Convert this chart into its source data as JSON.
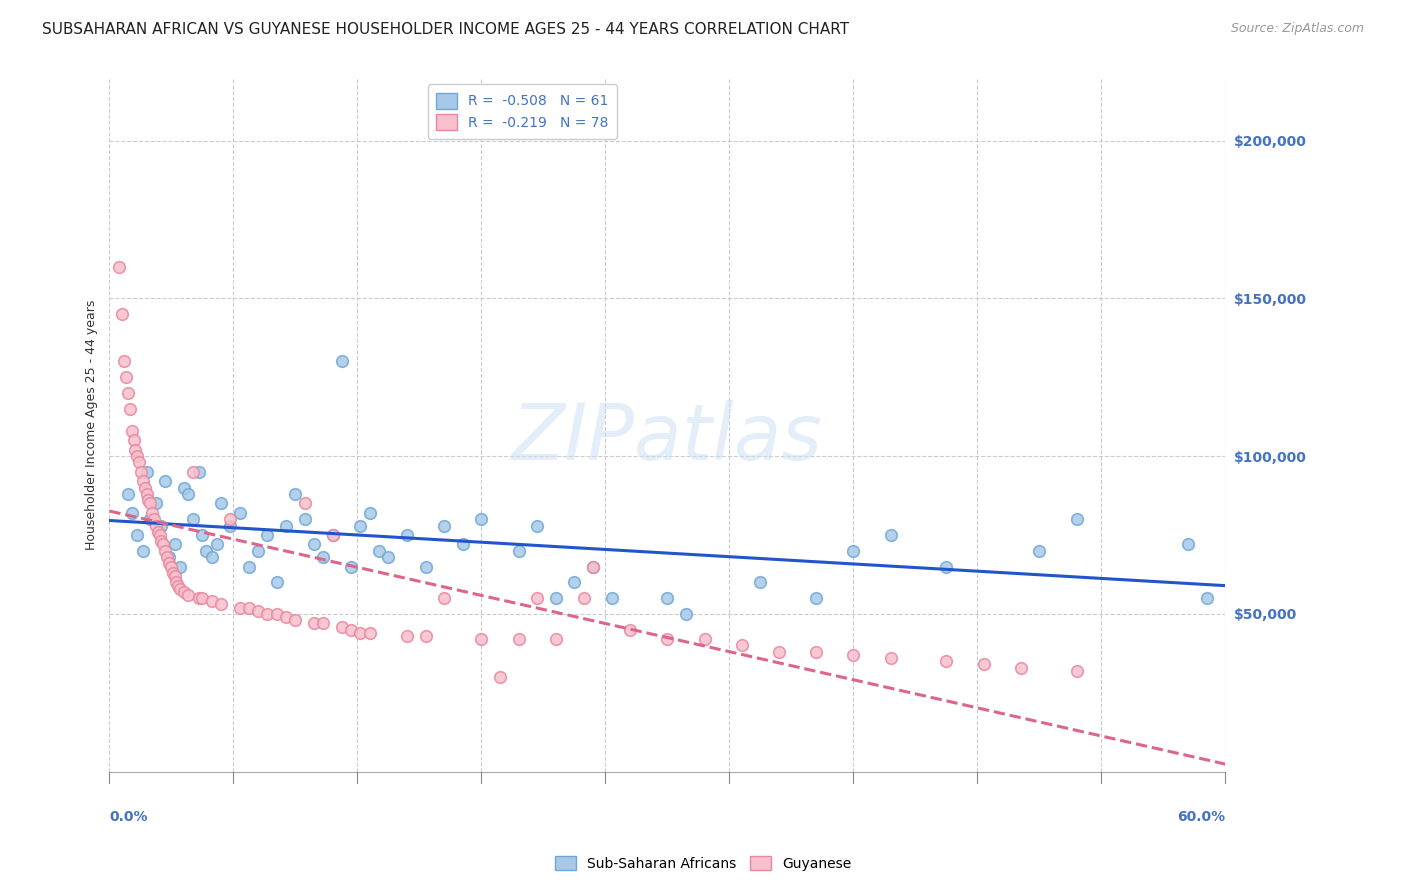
{
  "title": "SUBSAHARAN AFRICAN VS GUYANESE HOUSEHOLDER INCOME AGES 25 - 44 YEARS CORRELATION CHART",
  "source": "Source: ZipAtlas.com",
  "ylabel": "Householder Income Ages 25 - 44 years",
  "xmin": 0.0,
  "xmax": 0.6,
  "ymin": 0,
  "ymax": 220000,
  "right_yticks": [
    50000,
    100000,
    150000,
    200000
  ],
  "right_ytick_labels": [
    "$50,000",
    "$100,000",
    "$150,000",
    "$200,000"
  ],
  "blue_R": -0.508,
  "blue_N": 61,
  "pink_R": -0.219,
  "pink_N": 78,
  "blue_face": "#a8c8e8",
  "blue_edge": "#6fa8d8",
  "pink_face": "#f8c0cc",
  "pink_edge": "#e888a0",
  "trend_blue": "#2255cc",
  "trend_pink": "#dd6688",
  "blue_scatter": [
    [
      0.01,
      88000
    ],
    [
      0.012,
      82000
    ],
    [
      0.015,
      75000
    ],
    [
      0.018,
      70000
    ],
    [
      0.02,
      95000
    ],
    [
      0.022,
      80000
    ],
    [
      0.025,
      85000
    ],
    [
      0.028,
      78000
    ],
    [
      0.03,
      92000
    ],
    [
      0.032,
      68000
    ],
    [
      0.035,
      72000
    ],
    [
      0.038,
      65000
    ],
    [
      0.04,
      90000
    ],
    [
      0.042,
      88000
    ],
    [
      0.045,
      80000
    ],
    [
      0.048,
      95000
    ],
    [
      0.05,
      75000
    ],
    [
      0.052,
      70000
    ],
    [
      0.055,
      68000
    ],
    [
      0.058,
      72000
    ],
    [
      0.06,
      85000
    ],
    [
      0.065,
      78000
    ],
    [
      0.07,
      82000
    ],
    [
      0.075,
      65000
    ],
    [
      0.08,
      70000
    ],
    [
      0.085,
      75000
    ],
    [
      0.09,
      60000
    ],
    [
      0.095,
      78000
    ],
    [
      0.1,
      88000
    ],
    [
      0.105,
      80000
    ],
    [
      0.11,
      72000
    ],
    [
      0.115,
      68000
    ],
    [
      0.12,
      75000
    ],
    [
      0.125,
      130000
    ],
    [
      0.13,
      65000
    ],
    [
      0.135,
      78000
    ],
    [
      0.14,
      82000
    ],
    [
      0.145,
      70000
    ],
    [
      0.15,
      68000
    ],
    [
      0.16,
      75000
    ],
    [
      0.17,
      65000
    ],
    [
      0.18,
      78000
    ],
    [
      0.19,
      72000
    ],
    [
      0.2,
      80000
    ],
    [
      0.22,
      70000
    ],
    [
      0.23,
      78000
    ],
    [
      0.24,
      55000
    ],
    [
      0.25,
      60000
    ],
    [
      0.26,
      65000
    ],
    [
      0.27,
      55000
    ],
    [
      0.3,
      55000
    ],
    [
      0.31,
      50000
    ],
    [
      0.35,
      60000
    ],
    [
      0.38,
      55000
    ],
    [
      0.4,
      70000
    ],
    [
      0.42,
      75000
    ],
    [
      0.45,
      65000
    ],
    [
      0.5,
      70000
    ],
    [
      0.52,
      80000
    ],
    [
      0.58,
      72000
    ],
    [
      0.59,
      55000
    ]
  ],
  "pink_scatter": [
    [
      0.005,
      160000
    ],
    [
      0.007,
      145000
    ],
    [
      0.008,
      130000
    ],
    [
      0.009,
      125000
    ],
    [
      0.01,
      120000
    ],
    [
      0.011,
      115000
    ],
    [
      0.012,
      108000
    ],
    [
      0.013,
      105000
    ],
    [
      0.014,
      102000
    ],
    [
      0.015,
      100000
    ],
    [
      0.016,
      98000
    ],
    [
      0.017,
      95000
    ],
    [
      0.018,
      92000
    ],
    [
      0.019,
      90000
    ],
    [
      0.02,
      88000
    ],
    [
      0.021,
      86000
    ],
    [
      0.022,
      85000
    ],
    [
      0.023,
      82000
    ],
    [
      0.024,
      80000
    ],
    [
      0.025,
      78000
    ],
    [
      0.026,
      76000
    ],
    [
      0.027,
      75000
    ],
    [
      0.028,
      73000
    ],
    [
      0.029,
      72000
    ],
    [
      0.03,
      70000
    ],
    [
      0.031,
      68000
    ],
    [
      0.032,
      66000
    ],
    [
      0.033,
      65000
    ],
    [
      0.034,
      63000
    ],
    [
      0.035,
      62000
    ],
    [
      0.036,
      60000
    ],
    [
      0.037,
      59000
    ],
    [
      0.038,
      58000
    ],
    [
      0.04,
      57000
    ],
    [
      0.042,
      56000
    ],
    [
      0.045,
      95000
    ],
    [
      0.048,
      55000
    ],
    [
      0.05,
      55000
    ],
    [
      0.055,
      54000
    ],
    [
      0.06,
      53000
    ],
    [
      0.065,
      80000
    ],
    [
      0.07,
      52000
    ],
    [
      0.075,
      52000
    ],
    [
      0.08,
      51000
    ],
    [
      0.085,
      50000
    ],
    [
      0.09,
      50000
    ],
    [
      0.095,
      49000
    ],
    [
      0.1,
      48000
    ],
    [
      0.105,
      85000
    ],
    [
      0.11,
      47000
    ],
    [
      0.115,
      47000
    ],
    [
      0.12,
      75000
    ],
    [
      0.125,
      46000
    ],
    [
      0.13,
      45000
    ],
    [
      0.135,
      44000
    ],
    [
      0.14,
      44000
    ],
    [
      0.16,
      43000
    ],
    [
      0.17,
      43000
    ],
    [
      0.18,
      55000
    ],
    [
      0.2,
      42000
    ],
    [
      0.21,
      30000
    ],
    [
      0.22,
      42000
    ],
    [
      0.23,
      55000
    ],
    [
      0.24,
      42000
    ],
    [
      0.255,
      55000
    ],
    [
      0.26,
      65000
    ],
    [
      0.28,
      45000
    ],
    [
      0.3,
      42000
    ],
    [
      0.32,
      42000
    ],
    [
      0.34,
      40000
    ],
    [
      0.36,
      38000
    ],
    [
      0.38,
      38000
    ],
    [
      0.4,
      37000
    ],
    [
      0.42,
      36000
    ],
    [
      0.45,
      35000
    ],
    [
      0.47,
      34000
    ],
    [
      0.49,
      33000
    ],
    [
      0.52,
      32000
    ]
  ],
  "background_color": "#ffffff",
  "grid_color": "#cccccc",
  "axis_color": "#4472c4",
  "title_fontsize": 11,
  "tick_fontsize": 10
}
